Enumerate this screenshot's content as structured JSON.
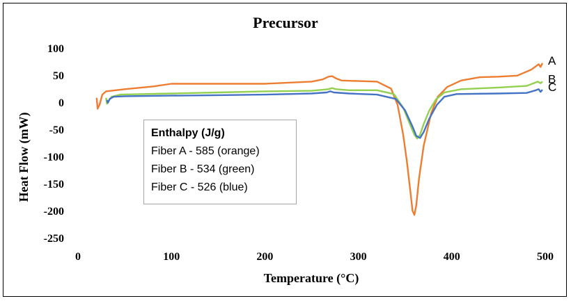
{
  "chart_data": {
    "type": "line",
    "title": "Precursor",
    "xlabel": "Temperature (°C)",
    "ylabel": "Heat Flow (mW)",
    "xlim": [
      0,
      500
    ],
    "ylim": [
      -250,
      100
    ],
    "xticks": [
      0,
      100,
      200,
      300,
      400,
      500
    ],
    "yticks": [
      100,
      50,
      0,
      -50,
      -100,
      -150,
      -200,
      -250
    ],
    "grid": false,
    "series": [
      {
        "name": "A",
        "color": "#ED7D31",
        "points": [
          [
            20,
            8
          ],
          [
            21,
            -12
          ],
          [
            23,
            -5
          ],
          [
            26,
            14
          ],
          [
            30,
            20
          ],
          [
            50,
            24
          ],
          [
            80,
            29
          ],
          [
            100,
            34
          ],
          [
            150,
            34
          ],
          [
            200,
            34
          ],
          [
            250,
            38
          ],
          [
            262,
            42
          ],
          [
            268,
            47
          ],
          [
            272,
            48
          ],
          [
            276,
            44
          ],
          [
            282,
            40
          ],
          [
            300,
            39
          ],
          [
            320,
            38
          ],
          [
            335,
            25
          ],
          [
            342,
            -5
          ],
          [
            348,
            -60
          ],
          [
            352,
            -110
          ],
          [
            356,
            -170
          ],
          [
            358,
            -200
          ],
          [
            360,
            -208
          ],
          [
            362,
            -190
          ],
          [
            365,
            -140
          ],
          [
            370,
            -80
          ],
          [
            378,
            -20
          ],
          [
            385,
            10
          ],
          [
            395,
            28
          ],
          [
            410,
            40
          ],
          [
            430,
            46
          ],
          [
            450,
            47
          ],
          [
            470,
            49
          ],
          [
            485,
            60
          ],
          [
            493,
            70
          ],
          [
            495,
            65
          ],
          [
            497,
            72
          ]
        ]
      },
      {
        "name": "B",
        "color": "#92D050",
        "points": [
          [
            30,
            8
          ],
          [
            31,
            -3
          ],
          [
            33,
            3
          ],
          [
            36,
            10
          ],
          [
            45,
            14
          ],
          [
            100,
            16
          ],
          [
            150,
            18
          ],
          [
            200,
            20
          ],
          [
            250,
            21
          ],
          [
            268,
            24
          ],
          [
            272,
            26
          ],
          [
            276,
            24
          ],
          [
            290,
            22
          ],
          [
            320,
            22
          ],
          [
            338,
            15
          ],
          [
            348,
            -10
          ],
          [
            355,
            -40
          ],
          [
            360,
            -60
          ],
          [
            363,
            -67
          ],
          [
            366,
            -60
          ],
          [
            370,
            -40
          ],
          [
            376,
            -15
          ],
          [
            383,
            5
          ],
          [
            392,
            18
          ],
          [
            410,
            24
          ],
          [
            450,
            27
          ],
          [
            480,
            30
          ],
          [
            492,
            38
          ],
          [
            495,
            35
          ],
          [
            497,
            38
          ]
        ]
      },
      {
        "name": "C",
        "color": "#4472C4",
        "points": [
          [
            31,
            4
          ],
          [
            32,
            -1
          ],
          [
            34,
            6
          ],
          [
            38,
            10
          ],
          [
            50,
            11
          ],
          [
            100,
            12
          ],
          [
            150,
            13
          ],
          [
            200,
            14
          ],
          [
            250,
            16
          ],
          [
            266,
            18
          ],
          [
            270,
            20
          ],
          [
            274,
            18
          ],
          [
            290,
            16
          ],
          [
            320,
            14
          ],
          [
            340,
            6
          ],
          [
            350,
            -15
          ],
          [
            358,
            -45
          ],
          [
            362,
            -62
          ],
          [
            366,
            -66
          ],
          [
            370,
            -55
          ],
          [
            376,
            -30
          ],
          [
            384,
            -5
          ],
          [
            392,
            10
          ],
          [
            405,
            15
          ],
          [
            450,
            16
          ],
          [
            480,
            17
          ],
          [
            490,
            22
          ],
          [
            493,
            24
          ],
          [
            495,
            19
          ],
          [
            497,
            23
          ]
        ]
      }
    ],
    "series_labels": [
      "A",
      "B",
      "C"
    ],
    "annotation": {
      "heading": "Enthalpy (J/g)",
      "lines": [
        "Fiber A - 585 (orange)",
        "Fiber B - 534 (green)",
        "Fiber C - 526 (blue)"
      ]
    }
  }
}
